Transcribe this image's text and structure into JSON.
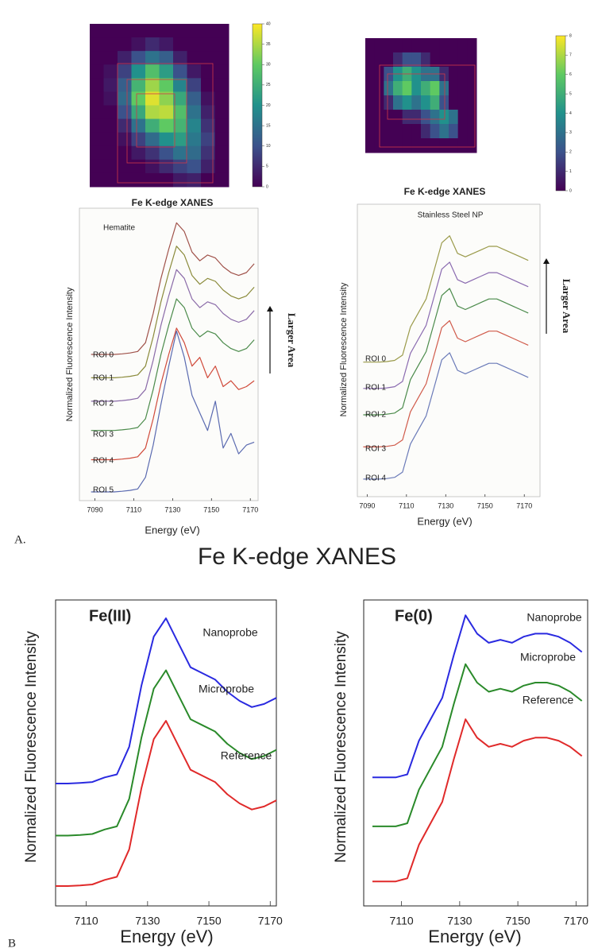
{
  "figure_title": "Fe K-edge XANES",
  "panel_a": "A.",
  "panel_b": "B",
  "chart_data": [
    {
      "type": "heatmap",
      "colormap": "viridis",
      "zlim": [
        0,
        40
      ],
      "zticks": [
        0,
        5,
        10,
        15,
        20,
        25,
        30,
        35,
        40
      ],
      "z": [
        [
          0,
          0,
          0,
          0,
          0,
          0,
          0,
          0,
          0,
          0
        ],
        [
          0,
          0,
          0,
          2,
          5,
          3,
          0,
          0,
          0,
          0
        ],
        [
          0,
          0,
          4,
          10,
          15,
          12,
          4,
          0,
          0,
          0
        ],
        [
          0,
          2,
          8,
          20,
          28,
          22,
          10,
          3,
          0,
          0
        ],
        [
          0,
          3,
          12,
          26,
          34,
          30,
          18,
          8,
          0,
          0
        ],
        [
          0,
          2,
          14,
          30,
          38,
          33,
          24,
          12,
          2,
          0
        ],
        [
          0,
          0,
          10,
          24,
          35,
          36,
          28,
          15,
          4,
          0
        ],
        [
          0,
          0,
          5,
          15,
          25,
          30,
          26,
          18,
          6,
          0
        ],
        [
          0,
          0,
          2,
          8,
          14,
          20,
          22,
          16,
          8,
          0
        ],
        [
          0,
          0,
          0,
          3,
          6,
          10,
          15,
          14,
          6,
          0
        ],
        [
          0,
          0,
          0,
          0,
          2,
          5,
          8,
          10,
          4,
          0
        ],
        [
          0,
          0,
          0,
          0,
          0,
          0,
          3,
          4,
          0,
          0
        ]
      ]
    },
    {
      "type": "heatmap",
      "colormap": "viridis",
      "zlim": [
        0,
        8
      ],
      "zticks": [
        0,
        1,
        2,
        3,
        4,
        5,
        6,
        7,
        8
      ],
      "z": [
        [
          0,
          0,
          0,
          0,
          0,
          0,
          0,
          0,
          0,
          0,
          0,
          0
        ],
        [
          0,
          0,
          0,
          1,
          2,
          2,
          1,
          0,
          0,
          0,
          0,
          0
        ],
        [
          0,
          0,
          2,
          4,
          5,
          4,
          3,
          3,
          1,
          0,
          0,
          0
        ],
        [
          0,
          0,
          3,
          5,
          6,
          4,
          5,
          6,
          3,
          0,
          0,
          0
        ],
        [
          0,
          0,
          1,
          3,
          4,
          3,
          4,
          5,
          2,
          0,
          0,
          0
        ],
        [
          0,
          0,
          0,
          0,
          1,
          1,
          2,
          3,
          4,
          3,
          0,
          0
        ],
        [
          0,
          0,
          0,
          0,
          0,
          0,
          1,
          2,
          3,
          2,
          0,
          0
        ],
        [
          0,
          0,
          0,
          0,
          0,
          0,
          0,
          0,
          0,
          0,
          0,
          0
        ]
      ]
    },
    {
      "type": "line",
      "title": "Fe K-edge XANES",
      "annotation": "Hematite",
      "side_note": "Larger Area",
      "xlabel": "Energy (eV)",
      "ylabel": "Normalized Fluorescence Intensity",
      "xlim": [
        7082,
        7174
      ],
      "xticks": [
        7090,
        7110,
        7130,
        7150,
        7170
      ],
      "ylim": [
        0,
        10
      ],
      "x": [
        7088,
        7092,
        7096,
        7100,
        7104,
        7108,
        7112,
        7116,
        7120,
        7124,
        7128,
        7132,
        7136,
        7140,
        7144,
        7148,
        7152,
        7156,
        7160,
        7164,
        7168,
        7172
      ],
      "series": [
        {
          "name": "ROI 0",
          "color": "#a0524a",
          "values": [
            5.0,
            5.0,
            5.0,
            5.0,
            5.02,
            5.05,
            5.1,
            5.4,
            6.4,
            7.6,
            8.6,
            9.5,
            9.2,
            8.5,
            8.2,
            8.4,
            8.3,
            8.0,
            7.8,
            7.7,
            7.8,
            8.1
          ]
        },
        {
          "name": "ROI 1",
          "color": "#8a8a3a",
          "values": [
            4.2,
            4.2,
            4.2,
            4.2,
            4.22,
            4.25,
            4.3,
            4.6,
            5.6,
            6.8,
            7.8,
            8.7,
            8.4,
            7.7,
            7.4,
            7.6,
            7.5,
            7.2,
            7.0,
            6.9,
            7.0,
            7.3
          ]
        },
        {
          "name": "ROI 2",
          "color": "#8a6aa8",
          "values": [
            3.4,
            3.4,
            3.4,
            3.4,
            3.42,
            3.45,
            3.5,
            3.8,
            4.8,
            6.0,
            7.0,
            7.9,
            7.6,
            6.9,
            6.6,
            6.8,
            6.7,
            6.4,
            6.2,
            6.1,
            6.2,
            6.5
          ]
        },
        {
          "name": "ROI 3",
          "color": "#4a8a4a",
          "values": [
            2.4,
            2.4,
            2.4,
            2.4,
            2.42,
            2.45,
            2.5,
            2.8,
            3.8,
            5.0,
            6.0,
            6.9,
            6.6,
            5.9,
            5.6,
            5.8,
            5.7,
            5.4,
            5.2,
            5.1,
            5.2,
            5.5
          ]
        },
        {
          "name": "ROI 4",
          "color": "#d04a3a",
          "values": [
            1.4,
            1.4,
            1.4,
            1.4,
            1.42,
            1.45,
            1.5,
            1.8,
            2.8,
            4.0,
            5.0,
            5.9,
            5.4,
            4.6,
            4.9,
            4.2,
            4.6,
            3.9,
            4.1,
            3.8,
            3.9,
            4.1
          ]
        },
        {
          "name": "ROI 5",
          "color": "#5a6ab0",
          "values": [
            0.3,
            0.3,
            0.3,
            0.3,
            0.32,
            0.35,
            0.4,
            0.8,
            1.9,
            3.3,
            4.6,
            5.8,
            4.9,
            3.6,
            3.0,
            2.4,
            3.4,
            1.8,
            2.3,
            1.6,
            1.9,
            2.0
          ]
        }
      ]
    },
    {
      "type": "line",
      "title": "Fe K-edge XANES",
      "annotation": "Stainless Steel NP",
      "side_note": "Larger Area",
      "xlabel": "Energy (eV)",
      "ylabel": "Normalized Fluorescence Intensity",
      "xlim": [
        7085,
        7178
      ],
      "xticks": [
        7090,
        7110,
        7130,
        7150,
        7170
      ],
      "ylim": [
        0,
        10
      ],
      "x": [
        7088,
        7092,
        7096,
        7100,
        7104,
        7108,
        7112,
        7116,
        7120,
        7124,
        7128,
        7132,
        7136,
        7140,
        7144,
        7148,
        7152,
        7156,
        7160,
        7164,
        7168,
        7172
      ],
      "series": [
        {
          "name": "ROI 0",
          "color": "#9a9a4a",
          "values": [
            4.6,
            4.6,
            4.6,
            4.62,
            4.66,
            4.84,
            5.8,
            6.28,
            6.76,
            7.72,
            8.68,
            8.92,
            8.32,
            8.2,
            8.32,
            8.44,
            8.56,
            8.56,
            8.44,
            8.32,
            8.2,
            8.08
          ]
        },
        {
          "name": "ROI 1",
          "color": "#8a6ab0",
          "values": [
            3.7,
            3.7,
            3.7,
            3.72,
            3.76,
            3.94,
            4.9,
            5.38,
            5.86,
            6.82,
            7.78,
            8.02,
            7.42,
            7.3,
            7.42,
            7.54,
            7.66,
            7.66,
            7.54,
            7.42,
            7.3,
            7.18
          ]
        },
        {
          "name": "ROI 2",
          "color": "#4a8a4a",
          "values": [
            2.8,
            2.8,
            2.8,
            2.82,
            2.86,
            3.04,
            4.0,
            4.48,
            4.96,
            5.92,
            6.88,
            7.12,
            6.52,
            6.4,
            6.52,
            6.64,
            6.76,
            6.76,
            6.64,
            6.52,
            6.4,
            6.28
          ]
        },
        {
          "name": "ROI 3",
          "color": "#d05a4a",
          "values": [
            1.7,
            1.7,
            1.7,
            1.72,
            1.76,
            1.94,
            2.9,
            3.38,
            3.86,
            4.82,
            5.78,
            6.02,
            5.42,
            5.3,
            5.42,
            5.54,
            5.66,
            5.66,
            5.54,
            5.42,
            5.3,
            5.18
          ]
        },
        {
          "name": "ROI 4",
          "color": "#6a7ab8",
          "values": [
            0.6,
            0.6,
            0.6,
            0.62,
            0.66,
            0.84,
            1.8,
            2.28,
            2.76,
            3.72,
            4.68,
            4.92,
            4.32,
            4.2,
            4.32,
            4.44,
            4.56,
            4.56,
            4.44,
            4.32,
            4.2,
            4.08
          ]
        }
      ]
    },
    {
      "type": "line",
      "annotation": "Fe(III)",
      "xlabel": "Energy (eV)",
      "ylabel": "Normalized Fluorescence Intensity",
      "xlim": [
        7100,
        7172
      ],
      "xticks": [
        7110,
        7130,
        7150,
        7170
      ],
      "ylim": [
        0,
        10
      ],
      "x": [
        7100,
        7104,
        7108,
        7112,
        7116,
        7120,
        7124,
        7128,
        7132,
        7136,
        7140,
        7144,
        7148,
        7152,
        7156,
        7160,
        7164,
        7168,
        7172
      ],
      "series": [
        {
          "name": "Nanoprobe",
          "color": "#2a2ae0",
          "values": [
            4.0,
            4.0,
            4.02,
            4.05,
            4.2,
            4.3,
            5.2,
            7.2,
            8.8,
            9.4,
            8.6,
            7.8,
            7.6,
            7.4,
            7.0,
            6.7,
            6.5,
            6.6,
            6.8
          ]
        },
        {
          "name": "Microprobe",
          "color": "#2a8a2a",
          "values": [
            2.3,
            2.3,
            2.32,
            2.35,
            2.5,
            2.6,
            3.5,
            5.5,
            7.1,
            7.7,
            6.9,
            6.1,
            5.9,
            5.7,
            5.3,
            5.0,
            4.8,
            4.9,
            5.1
          ]
        },
        {
          "name": "Reference",
          "color": "#e02a2a",
          "values": [
            0.65,
            0.65,
            0.67,
            0.7,
            0.85,
            0.95,
            1.85,
            3.85,
            5.45,
            6.05,
            5.25,
            4.45,
            4.25,
            4.05,
            3.65,
            3.35,
            3.15,
            3.25,
            3.45
          ]
        }
      ]
    },
    {
      "type": "line",
      "annotation": "Fe(0)",
      "xlabel": "Energy (eV)",
      "ylabel": "Normalized Fluorescence Intensity",
      "xlim": [
        7097,
        7174
      ],
      "xticks": [
        7110,
        7130,
        7150,
        7170
      ],
      "ylim": [
        0,
        10
      ],
      "x": [
        7100,
        7104,
        7108,
        7112,
        7116,
        7120,
        7124,
        7128,
        7132,
        7136,
        7140,
        7144,
        7148,
        7152,
        7156,
        7160,
        7164,
        7168,
        7172
      ],
      "series": [
        {
          "name": "Nanoprobe",
          "color": "#2a2ae0",
          "values": [
            4.2,
            4.2,
            4.2,
            4.3,
            5.4,
            6.1,
            6.8,
            8.2,
            9.5,
            8.9,
            8.6,
            8.7,
            8.6,
            8.8,
            8.9,
            8.9,
            8.8,
            8.6,
            8.3
          ]
        },
        {
          "name": "Microprobe",
          "color": "#2a8a2a",
          "values": [
            2.6,
            2.6,
            2.6,
            2.7,
            3.8,
            4.5,
            5.2,
            6.6,
            7.9,
            7.3,
            7.0,
            7.1,
            7.0,
            7.2,
            7.3,
            7.3,
            7.2,
            7.0,
            6.7
          ]
        },
        {
          "name": "Reference",
          "color": "#e02a2a",
          "values": [
            0.8,
            0.8,
            0.8,
            0.9,
            2.0,
            2.7,
            3.4,
            4.8,
            6.1,
            5.5,
            5.2,
            5.3,
            5.2,
            5.4,
            5.5,
            5.5,
            5.4,
            5.2,
            4.9
          ]
        }
      ]
    }
  ]
}
